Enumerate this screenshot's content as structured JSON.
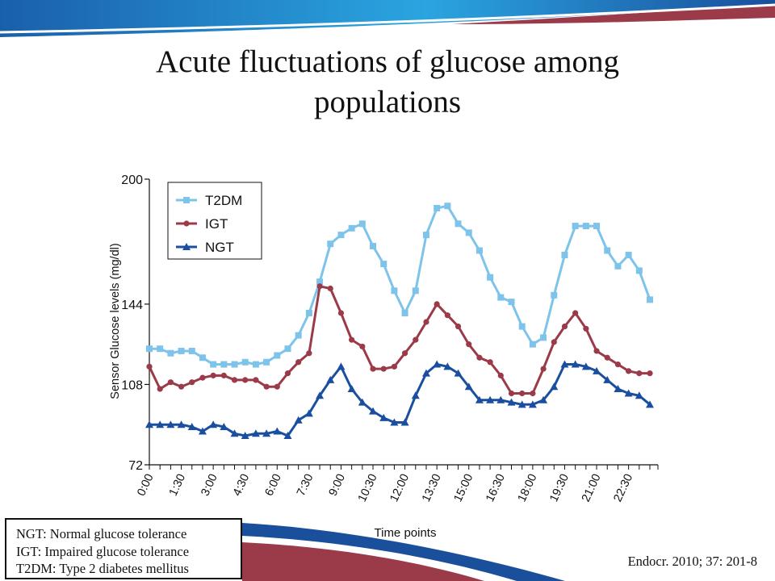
{
  "slide": {
    "title_line1": "Acute fluctuations of glucose among",
    "title_line2": "populations",
    "abbreviations": [
      "NGT: Normal glucose tolerance",
      "IGT: Impaired glucose tolerance",
      "T2DM: Type 2 diabetes mellitus"
    ],
    "citation": "Endocr. 2010; 37: 201-8",
    "colors": {
      "banner_blue": "#1a4f9c",
      "banner_cyan": "#29a6e0",
      "banner_red": "#9b3a48"
    }
  },
  "chart_data": {
    "type": "line",
    "title": "",
    "xlabel": "Time points",
    "ylabel": "Sensor Glucose levels (mg/dl)",
    "ylim": [
      72,
      200
    ],
    "yticks": [
      72,
      108,
      144,
      200
    ],
    "x_tick_labels": [
      "0:00",
      "1:30",
      "3:00",
      "4:30",
      "6:00",
      "7:30",
      "9:00",
      "10:30",
      "12:00",
      "13:30",
      "15:00",
      "16:30",
      "18:00",
      "19:30",
      "21:00",
      "22:30"
    ],
    "x_count": 48,
    "grid": false,
    "legend_position": "top-left",
    "series": [
      {
        "name": "T2DM",
        "color": "#7dc3ea",
        "marker": "square",
        "values": [
          124,
          124,
          122,
          123,
          123,
          120,
          117,
          117,
          117,
          118,
          117,
          118,
          121,
          124,
          130,
          140,
          154,
          171,
          175,
          178,
          180,
          170,
          162,
          150,
          140,
          150,
          175,
          187,
          188,
          180,
          176,
          168,
          156,
          147,
          145,
          134,
          126,
          129,
          148,
          166,
          179,
          179,
          179,
          168,
          161,
          166,
          159,
          146
        ]
      },
      {
        "name": "IGT",
        "color": "#9b3a48",
        "marker": "circle",
        "values": [
          116,
          106,
          109,
          107,
          109,
          111,
          112,
          112,
          110,
          110,
          110,
          107,
          107,
          113,
          118,
          122,
          152,
          151,
          140,
          128,
          125,
          115,
          115,
          116,
          122,
          128,
          136,
          144,
          139,
          134,
          126,
          120,
          118,
          112,
          104,
          104,
          104,
          115,
          127,
          134,
          140,
          133,
          123,
          120,
          117,
          114,
          113,
          113
        ]
      },
      {
        "name": "NGT",
        "color": "#1a4fa0",
        "marker": "triangle",
        "values": [
          90,
          90,
          90,
          90,
          89,
          87,
          90,
          89,
          86,
          85,
          86,
          86,
          87,
          85,
          92,
          95,
          103,
          110,
          116,
          106,
          100,
          96,
          93,
          91,
          91,
          103,
          113,
          117,
          116,
          113,
          107,
          101,
          101,
          101,
          100,
          99,
          99,
          101,
          107,
          117,
          117,
          116,
          114,
          110,
          106,
          104,
          103,
          99
        ]
      }
    ]
  }
}
